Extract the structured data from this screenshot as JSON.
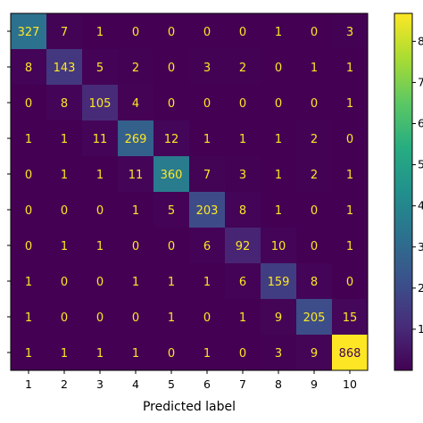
{
  "chart_data": {
    "type": "heatmap",
    "xlabel": "Predicted label",
    "ylabel": "",
    "x_ticks": [
      "1",
      "2",
      "3",
      "4",
      "5",
      "6",
      "7",
      "8",
      "9",
      "10"
    ],
    "y_ticks": [],
    "colormap": "viridis",
    "value_range": [
      0,
      868
    ],
    "colorbar_tick_labels": [
      "8",
      "7",
      "6",
      "5",
      "4",
      "3",
      "2",
      "1"
    ],
    "matrix": [
      [
        327,
        7,
        1,
        0,
        0,
        0,
        0,
        1,
        0,
        3
      ],
      [
        8,
        143,
        5,
        2,
        0,
        3,
        2,
        0,
        1,
        1
      ],
      [
        0,
        8,
        105,
        4,
        0,
        0,
        0,
        0,
        0,
        1
      ],
      [
        1,
        1,
        11,
        269,
        12,
        1,
        1,
        1,
        2,
        0
      ],
      [
        0,
        1,
        1,
        11,
        360,
        7,
        3,
        1,
        2,
        1
      ],
      [
        0,
        0,
        0,
        1,
        5,
        203,
        8,
        1,
        0,
        1
      ],
      [
        0,
        1,
        1,
        0,
        0,
        6,
        92,
        10,
        0,
        1
      ],
      [
        1,
        0,
        0,
        1,
        1,
        1,
        6,
        159,
        8,
        0
      ],
      [
        1,
        0,
        0,
        0,
        1,
        0,
        1,
        9,
        205,
        15
      ],
      [
        1,
        1,
        1,
        1,
        0,
        1,
        0,
        3,
        9,
        868
      ]
    ],
    "text_color_low": "#fde725",
    "text_color_high": "#440154"
  }
}
